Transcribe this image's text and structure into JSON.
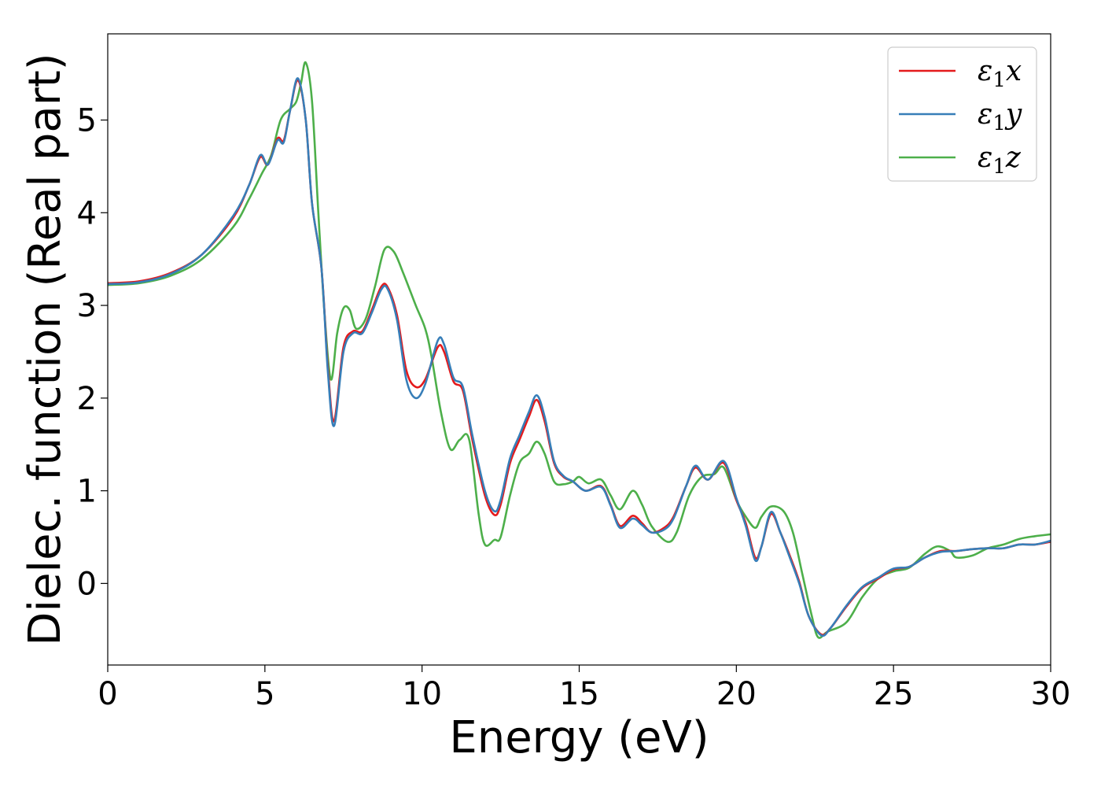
{
  "chart_data": {
    "type": "line",
    "title": "",
    "xlabel": "Energy (eV)",
    "ylabel": "Dielec. function (Real part)",
    "xlim": [
      0,
      30
    ],
    "ylim": [
      -0.88,
      5.93
    ],
    "xticks": [
      0,
      5,
      10,
      15,
      20,
      25,
      30
    ],
    "yticks": [
      0,
      1,
      2,
      3,
      4,
      5
    ],
    "grid": false,
    "legend_position": "top-right",
    "series": [
      {
        "name_base": "ε",
        "name_sub": "1",
        "name_var": "x",
        "color": "#e41a1c",
        "points": [
          [
            0,
            3.24
          ],
          [
            1,
            3.26
          ],
          [
            2,
            3.35
          ],
          [
            3,
            3.55
          ],
          [
            4,
            3.95
          ],
          [
            4.5,
            4.3
          ],
          [
            4.85,
            4.6
          ],
          [
            5.1,
            4.52
          ],
          [
            5.4,
            4.8
          ],
          [
            5.6,
            4.78
          ],
          [
            5.8,
            5.1
          ],
          [
            6.05,
            5.43
          ],
          [
            6.3,
            5.0
          ],
          [
            6.5,
            4.1
          ],
          [
            6.8,
            3.4
          ],
          [
            7.0,
            2.35
          ],
          [
            7.2,
            1.75
          ],
          [
            7.5,
            2.55
          ],
          [
            7.8,
            2.72
          ],
          [
            8.1,
            2.72
          ],
          [
            8.4,
            2.95
          ],
          [
            8.7,
            3.2
          ],
          [
            8.9,
            3.2
          ],
          [
            9.2,
            2.9
          ],
          [
            9.5,
            2.3
          ],
          [
            9.8,
            2.12
          ],
          [
            10.1,
            2.2
          ],
          [
            10.5,
            2.55
          ],
          [
            10.7,
            2.5
          ],
          [
            11.0,
            2.18
          ],
          [
            11.3,
            2.08
          ],
          [
            11.6,
            1.55
          ],
          [
            12.0,
            0.95
          ],
          [
            12.3,
            0.74
          ],
          [
            12.5,
            0.85
          ],
          [
            12.8,
            1.3
          ],
          [
            13.1,
            1.55
          ],
          [
            13.4,
            1.8
          ],
          [
            13.65,
            1.98
          ],
          [
            13.9,
            1.75
          ],
          [
            14.2,
            1.3
          ],
          [
            14.5,
            1.15
          ],
          [
            14.8,
            1.1
          ],
          [
            15.2,
            1.0
          ],
          [
            15.7,
            1.05
          ],
          [
            16.0,
            0.85
          ],
          [
            16.3,
            0.62
          ],
          [
            16.7,
            0.73
          ],
          [
            17.0,
            0.65
          ],
          [
            17.3,
            0.55
          ],
          [
            17.7,
            0.6
          ],
          [
            18.0,
            0.72
          ],
          [
            18.4,
            1.05
          ],
          [
            18.7,
            1.25
          ],
          [
            19.1,
            1.12
          ],
          [
            19.6,
            1.3
          ],
          [
            20.0,
            0.9
          ],
          [
            20.3,
            0.65
          ],
          [
            20.6,
            0.28
          ],
          [
            20.8,
            0.4
          ],
          [
            21.1,
            0.75
          ],
          [
            21.4,
            0.55
          ],
          [
            21.7,
            0.3
          ],
          [
            22.0,
            0.02
          ],
          [
            22.3,
            -0.35
          ],
          [
            22.7,
            -0.55
          ],
          [
            23.0,
            -0.48
          ],
          [
            23.5,
            -0.25
          ],
          [
            24.0,
            -0.05
          ],
          [
            24.5,
            0.05
          ],
          [
            25.0,
            0.15
          ],
          [
            25.5,
            0.18
          ],
          [
            26.0,
            0.28
          ],
          [
            26.5,
            0.35
          ],
          [
            27.0,
            0.35
          ],
          [
            27.5,
            0.37
          ],
          [
            28.0,
            0.38
          ],
          [
            28.5,
            0.38
          ],
          [
            29.0,
            0.42
          ],
          [
            29.5,
            0.42
          ],
          [
            30.0,
            0.45
          ]
        ]
      },
      {
        "name_base": "ε",
        "name_sub": "1",
        "name_var": "y",
        "color": "#377eb8",
        "points": [
          [
            0,
            3.23
          ],
          [
            1,
            3.25
          ],
          [
            2,
            3.34
          ],
          [
            3,
            3.55
          ],
          [
            4,
            3.97
          ],
          [
            4.5,
            4.3
          ],
          [
            4.85,
            4.62
          ],
          [
            5.1,
            4.52
          ],
          [
            5.4,
            4.78
          ],
          [
            5.6,
            4.76
          ],
          [
            5.8,
            5.1
          ],
          [
            6.05,
            5.45
          ],
          [
            6.3,
            5.0
          ],
          [
            6.5,
            4.1
          ],
          [
            6.8,
            3.4
          ],
          [
            7.0,
            2.3
          ],
          [
            7.2,
            1.7
          ],
          [
            7.5,
            2.5
          ],
          [
            7.8,
            2.7
          ],
          [
            8.1,
            2.7
          ],
          [
            8.4,
            2.92
          ],
          [
            8.7,
            3.17
          ],
          [
            8.9,
            3.18
          ],
          [
            9.2,
            2.85
          ],
          [
            9.5,
            2.2
          ],
          [
            9.8,
            2.0
          ],
          [
            10.1,
            2.15
          ],
          [
            10.5,
            2.62
          ],
          [
            10.7,
            2.58
          ],
          [
            11.0,
            2.22
          ],
          [
            11.3,
            2.12
          ],
          [
            11.6,
            1.6
          ],
          [
            12.0,
            1.0
          ],
          [
            12.3,
            0.78
          ],
          [
            12.5,
            0.9
          ],
          [
            12.8,
            1.35
          ],
          [
            13.1,
            1.6
          ],
          [
            13.4,
            1.85
          ],
          [
            13.65,
            2.03
          ],
          [
            13.9,
            1.8
          ],
          [
            14.2,
            1.32
          ],
          [
            14.5,
            1.16
          ],
          [
            14.8,
            1.1
          ],
          [
            15.2,
            1.0
          ],
          [
            15.7,
            1.04
          ],
          [
            16.0,
            0.84
          ],
          [
            16.3,
            0.6
          ],
          [
            16.7,
            0.7
          ],
          [
            17.0,
            0.63
          ],
          [
            17.3,
            0.55
          ],
          [
            17.7,
            0.58
          ],
          [
            18.0,
            0.7
          ],
          [
            18.4,
            1.05
          ],
          [
            18.7,
            1.27
          ],
          [
            19.1,
            1.12
          ],
          [
            19.6,
            1.32
          ],
          [
            20.0,
            0.92
          ],
          [
            20.3,
            0.62
          ],
          [
            20.6,
            0.25
          ],
          [
            20.8,
            0.4
          ],
          [
            21.1,
            0.77
          ],
          [
            21.4,
            0.55
          ],
          [
            21.7,
            0.28
          ],
          [
            22.0,
            0.0
          ],
          [
            22.3,
            -0.35
          ],
          [
            22.7,
            -0.56
          ],
          [
            23.0,
            -0.48
          ],
          [
            23.5,
            -0.24
          ],
          [
            24.0,
            -0.04
          ],
          [
            24.5,
            0.06
          ],
          [
            25.0,
            0.16
          ],
          [
            25.5,
            0.18
          ],
          [
            26.0,
            0.28
          ],
          [
            26.5,
            0.34
          ],
          [
            27.0,
            0.35
          ],
          [
            27.5,
            0.37
          ],
          [
            28.0,
            0.38
          ],
          [
            28.5,
            0.38
          ],
          [
            29.0,
            0.42
          ],
          [
            29.5,
            0.42
          ],
          [
            30.0,
            0.46
          ]
        ]
      },
      {
        "name_base": "ε",
        "name_sub": "1",
        "name_var": "z",
        "color": "#4daf4a",
        "points": [
          [
            0,
            3.22
          ],
          [
            1,
            3.24
          ],
          [
            2,
            3.32
          ],
          [
            3,
            3.5
          ],
          [
            4,
            3.85
          ],
          [
            4.5,
            4.15
          ],
          [
            4.9,
            4.42
          ],
          [
            5.2,
            4.62
          ],
          [
            5.5,
            5.0
          ],
          [
            5.8,
            5.12
          ],
          [
            6.0,
            5.2
          ],
          [
            6.15,
            5.4
          ],
          [
            6.3,
            5.62
          ],
          [
            6.5,
            5.2
          ],
          [
            6.7,
            4.0
          ],
          [
            6.9,
            2.9
          ],
          [
            7.1,
            2.2
          ],
          [
            7.3,
            2.7
          ],
          [
            7.5,
            2.97
          ],
          [
            7.7,
            2.95
          ],
          [
            7.9,
            2.75
          ],
          [
            8.2,
            2.85
          ],
          [
            8.5,
            3.2
          ],
          [
            8.8,
            3.6
          ],
          [
            9.1,
            3.58
          ],
          [
            9.4,
            3.35
          ],
          [
            9.8,
            3.0
          ],
          [
            10.1,
            2.75
          ],
          [
            10.3,
            2.45
          ],
          [
            10.6,
            1.85
          ],
          [
            10.9,
            1.45
          ],
          [
            11.2,
            1.55
          ],
          [
            11.5,
            1.55
          ],
          [
            11.8,
            0.75
          ],
          [
            12.0,
            0.42
          ],
          [
            12.3,
            0.47
          ],
          [
            12.5,
            0.5
          ],
          [
            12.8,
            0.95
          ],
          [
            13.1,
            1.3
          ],
          [
            13.4,
            1.4
          ],
          [
            13.65,
            1.53
          ],
          [
            13.9,
            1.4
          ],
          [
            14.2,
            1.1
          ],
          [
            14.5,
            1.07
          ],
          [
            14.8,
            1.1
          ],
          [
            15.0,
            1.15
          ],
          [
            15.3,
            1.08
          ],
          [
            15.7,
            1.12
          ],
          [
            16.0,
            0.95
          ],
          [
            16.3,
            0.8
          ],
          [
            16.7,
            1.0
          ],
          [
            17.0,
            0.85
          ],
          [
            17.3,
            0.62
          ],
          [
            17.8,
            0.45
          ],
          [
            18.1,
            0.55
          ],
          [
            18.5,
            0.95
          ],
          [
            18.9,
            1.15
          ],
          [
            19.3,
            1.18
          ],
          [
            19.6,
            1.25
          ],
          [
            20.0,
            0.9
          ],
          [
            20.3,
            0.72
          ],
          [
            20.6,
            0.6
          ],
          [
            20.8,
            0.72
          ],
          [
            21.1,
            0.83
          ],
          [
            21.5,
            0.78
          ],
          [
            21.8,
            0.55
          ],
          [
            22.1,
            0.1
          ],
          [
            22.4,
            -0.35
          ],
          [
            22.6,
            -0.58
          ],
          [
            22.9,
            -0.52
          ],
          [
            23.5,
            -0.42
          ],
          [
            24.0,
            -0.15
          ],
          [
            24.5,
            0.05
          ],
          [
            25.0,
            0.13
          ],
          [
            25.5,
            0.17
          ],
          [
            26.0,
            0.32
          ],
          [
            26.4,
            0.4
          ],
          [
            26.8,
            0.35
          ],
          [
            27.0,
            0.28
          ],
          [
            27.5,
            0.3
          ],
          [
            28.0,
            0.38
          ],
          [
            28.5,
            0.42
          ],
          [
            29.0,
            0.48
          ],
          [
            29.5,
            0.51
          ],
          [
            30.0,
            0.53
          ]
        ]
      }
    ]
  }
}
